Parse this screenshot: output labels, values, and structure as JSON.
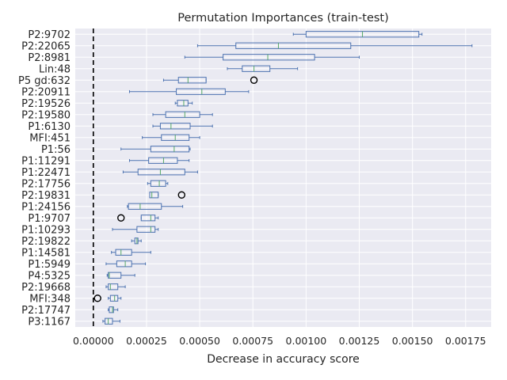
{
  "chart_data": {
    "type": "boxplot",
    "orientation": "horizontal",
    "title": "Permutation Importances (train-test)",
    "xlabel": "Decrease in accuracy score",
    "ylabel": "",
    "xlim": [
      -8.5e-05,
      0.00187
    ],
    "xticks": [
      0.0,
      0.00025,
      0.0005,
      0.00075,
      0.001,
      0.00125,
      0.0015,
      0.00175
    ],
    "xtick_labels": [
      "0.00000",
      "0.00025",
      "0.00050",
      "0.00075",
      "0.00100",
      "0.00125",
      "0.00150",
      "0.00175"
    ],
    "grid": true,
    "reference_line": {
      "x": 0.0,
      "style": "dashed",
      "color": "#000000"
    },
    "colors": {
      "background": "#eaeaf2",
      "grid": "#ffffff",
      "box": "#4c72b0",
      "median": "#55a868",
      "outlier": "#000000"
    },
    "boxes": [
      {
        "label": "P2:9702",
        "whislo": 0.00094,
        "q1": 0.001,
        "med": 0.001265,
        "q3": 0.00153,
        "whishi": 0.001545,
        "fliers": []
      },
      {
        "label": "P2:22065",
        "whislo": 0.00049,
        "q1": 0.00067,
        "med": 0.00087,
        "q3": 0.00121,
        "whishi": 0.00178,
        "fliers": []
      },
      {
        "label": "P2:8981",
        "whislo": 0.00043,
        "q1": 0.00061,
        "med": 0.00082,
        "q3": 0.00104,
        "whishi": 0.00125,
        "fliers": []
      },
      {
        "label": "Lin:48",
        "whislo": 0.00063,
        "q1": 0.0007,
        "med": 0.000755,
        "q3": 0.00083,
        "whishi": 0.00096,
        "fliers": []
      },
      {
        "label": "P5 gd:632",
        "whislo": 0.00033,
        "q1": 0.0004,
        "med": 0.000445,
        "q3": 0.00053,
        "whishi": 0.00053,
        "fliers": [
          0.000755
        ]
      },
      {
        "label": "P2:20911",
        "whislo": 0.00017,
        "q1": 0.00039,
        "med": 0.00051,
        "q3": 0.00062,
        "whishi": 0.00073,
        "fliers": []
      },
      {
        "label": "P2:19526",
        "whislo": 0.000385,
        "q1": 0.000395,
        "med": 0.000425,
        "q3": 0.000445,
        "whishi": 0.000465,
        "fliers": []
      },
      {
        "label": "P2:19580",
        "whislo": 0.00028,
        "q1": 0.00034,
        "med": 0.00043,
        "q3": 0.0005,
        "whishi": 0.00056,
        "fliers": []
      },
      {
        "label": "P1:6130",
        "whislo": 0.00028,
        "q1": 0.000315,
        "med": 0.000365,
        "q3": 0.000455,
        "whishi": 0.00056,
        "fliers": []
      },
      {
        "label": "MFI:451",
        "whislo": 0.00023,
        "q1": 0.00032,
        "med": 0.000385,
        "q3": 0.00045,
        "whishi": 0.0005,
        "fliers": []
      },
      {
        "label": "P1:56",
        "whislo": 0.00013,
        "q1": 0.00027,
        "med": 0.00038,
        "q3": 0.00045,
        "whishi": 0.000455,
        "fliers": []
      },
      {
        "label": "P1:11291",
        "whislo": 0.00017,
        "q1": 0.00026,
        "med": 0.00033,
        "q3": 0.000395,
        "whishi": 0.00045,
        "fliers": []
      },
      {
        "label": "P1:22471",
        "whislo": 0.00014,
        "q1": 0.00021,
        "med": 0.000315,
        "q3": 0.00043,
        "whishi": 0.00049,
        "fliers": []
      },
      {
        "label": "P2:17756",
        "whislo": 0.000255,
        "q1": 0.00027,
        "med": 0.00031,
        "q3": 0.00034,
        "whishi": 0.00035,
        "fliers": []
      },
      {
        "label": "P2:19831",
        "whislo": 0.000265,
        "q1": 0.000265,
        "med": 0.000275,
        "q3": 0.000305,
        "whishi": 0.000305,
        "fliers": [
          0.000415
        ]
      },
      {
        "label": "P1:24156",
        "whislo": 0.00016,
        "q1": 0.000165,
        "med": 0.00022,
        "q3": 0.00032,
        "whishi": 0.00042,
        "fliers": []
      },
      {
        "label": "P1:9707",
        "whislo": 0.000225,
        "q1": 0.000225,
        "med": 0.00027,
        "q3": 0.00029,
        "whishi": 0.000305,
        "fliers": [
          0.00013
        ]
      },
      {
        "label": "P1:10293",
        "whislo": 9e-05,
        "q1": 0.000205,
        "med": 0.00027,
        "q3": 0.00029,
        "whishi": 0.000305,
        "fliers": []
      },
      {
        "label": "P2:19822",
        "whislo": 0.00018,
        "q1": 0.000195,
        "med": 0.000205,
        "q3": 0.00021,
        "whishi": 0.000225,
        "fliers": []
      },
      {
        "label": "P1:14581",
        "whislo": 8.5e-05,
        "q1": 0.000105,
        "med": 0.00013,
        "q3": 0.00018,
        "whishi": 0.00027,
        "fliers": []
      },
      {
        "label": "P1:5949",
        "whislo": 6e-05,
        "q1": 0.00011,
        "med": 0.00015,
        "q3": 0.00018,
        "whishi": 0.000245,
        "fliers": []
      },
      {
        "label": "P4:5325",
        "whislo": 6.5e-05,
        "q1": 7e-05,
        "med": 7.5e-05,
        "q3": 0.00013,
        "whishi": 0.000195,
        "fliers": []
      },
      {
        "label": "P2:19668",
        "whislo": 6e-05,
        "q1": 7e-05,
        "med": 8e-05,
        "q3": 0.000115,
        "whishi": 0.00015,
        "fliers": []
      },
      {
        "label": "MFI:348",
        "whislo": 7e-05,
        "q1": 8e-05,
        "med": 0.0001,
        "q3": 0.000115,
        "whishi": 0.00013,
        "fliers": [
          2e-05
        ]
      },
      {
        "label": "P2:17747",
        "whislo": 7e-05,
        "q1": 7.5e-05,
        "med": 9e-05,
        "q3": 9.5e-05,
        "whishi": 0.000115,
        "fliers": []
      },
      {
        "label": "P3:1167",
        "whislo": 4.5e-05,
        "q1": 5.5e-05,
        "med": 7e-05,
        "q3": 9e-05,
        "whishi": 0.000125,
        "fliers": []
      }
    ]
  }
}
